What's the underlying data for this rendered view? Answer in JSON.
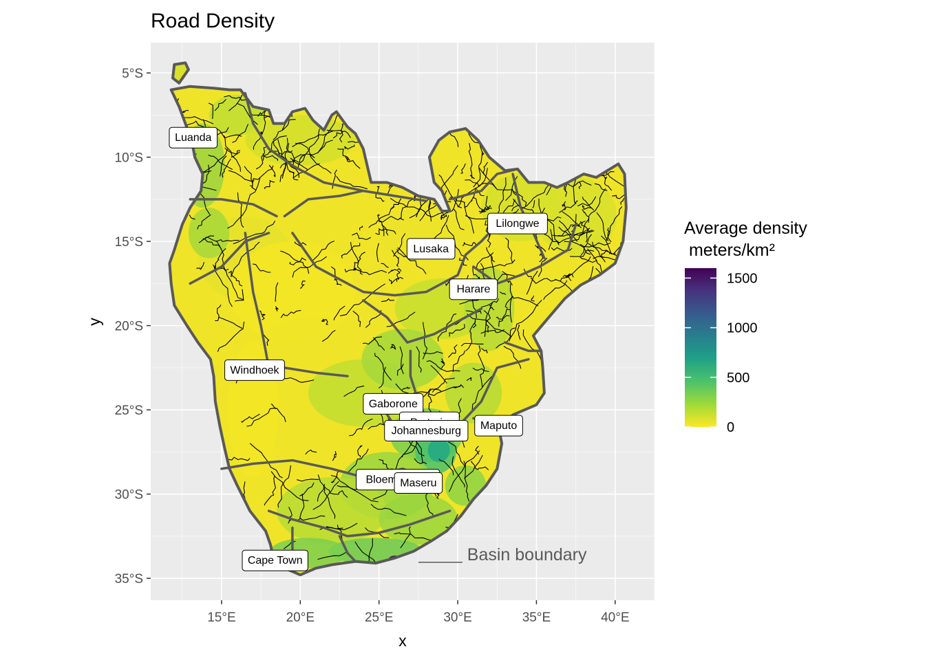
{
  "chart_data": {
    "type": "map",
    "title": "Road Density",
    "xlabel": "x",
    "ylabel": "y",
    "xlim": [
      10.5,
      42.5
    ],
    "ylim": [
      -36.3,
      -3.2
    ],
    "x_ticks": [
      {
        "value": 15,
        "label": "15°E"
      },
      {
        "value": 20,
        "label": "20°E"
      },
      {
        "value": 25,
        "label": "25°E"
      },
      {
        "value": 30,
        "label": "30°E"
      },
      {
        "value": 35,
        "label": "35°E"
      },
      {
        "value": 40,
        "label": "40°E"
      }
    ],
    "y_ticks": [
      {
        "value": -5,
        "label": "5°S"
      },
      {
        "value": -10,
        "label": "10°S"
      },
      {
        "value": -15,
        "label": "15°S"
      },
      {
        "value": -20,
        "label": "20°S"
      },
      {
        "value": -25,
        "label": "25°S"
      },
      {
        "value": -30,
        "label": "30°S"
      },
      {
        "value": -35,
        "label": "35°S"
      }
    ],
    "grid": true,
    "cities": [
      {
        "name": "Luanda",
        "lon": 13.2,
        "lat": -8.8
      },
      {
        "name": "Lusaka",
        "lon": 28.3,
        "lat": -15.4
      },
      {
        "name": "Lilongwe",
        "lon": 33.8,
        "lat": -13.9
      },
      {
        "name": "Harare",
        "lon": 31.0,
        "lat": -17.8
      },
      {
        "name": "Windhoek",
        "lon": 17.1,
        "lat": -22.6
      },
      {
        "name": "Gaborone",
        "lon": 25.9,
        "lat": -24.6
      },
      {
        "name": "Pretoria",
        "lon": 28.2,
        "lat": -25.7
      },
      {
        "name": "Johannesburg",
        "lon": 28.0,
        "lat": -26.2
      },
      {
        "name": "Maputo",
        "lon": 32.6,
        "lat": -25.9
      },
      {
        "name": "Bloemfontein",
        "lon": 26.2,
        "lat": -29.1
      },
      {
        "name": "Maseru",
        "lon": 27.5,
        "lat": -29.3
      },
      {
        "name": "Cape Town",
        "lon": 18.4,
        "lat": -33.9
      }
    ],
    "legend": {
      "title_line1": "Average density",
      "title_line2": " meters/km²",
      "min": 0,
      "max": 1600,
      "ticks": [
        {
          "value": 1500,
          "label": "1500"
        },
        {
          "value": 1000,
          "label": "1000"
        },
        {
          "value": 500,
          "label": "500"
        },
        {
          "value": 0,
          "label": "0"
        }
      ],
      "colormap": "viridis",
      "position": "right"
    },
    "annotation": {
      "text": "Basin boundary",
      "lon": 29.0,
      "lat": -33.6
    },
    "colors": {
      "panel": "#ebebeb",
      "grid": "#ffffff",
      "land_low": "#f0e428",
      "boundary": "#595959",
      "rivers": "#000000",
      "viridis": [
        "#fde725",
        "#a0da39",
        "#4ac16d",
        "#1fa187",
        "#277f8e",
        "#365c8d",
        "#46327e",
        "#440154"
      ]
    }
  }
}
